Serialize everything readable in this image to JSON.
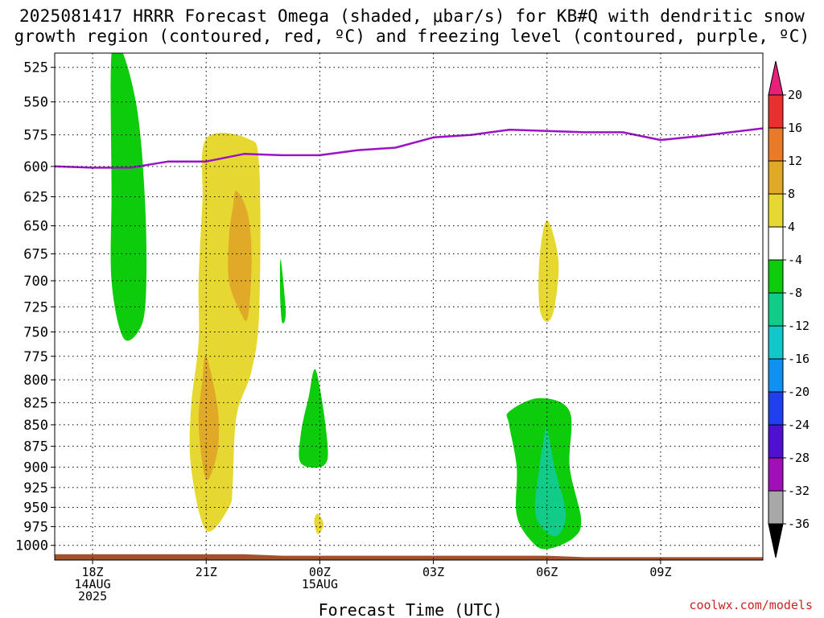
{
  "title_line1": "2025081417 HRRR Forecast Omega (shaded, μbar/s) for KB#Q with dendritic snow",
  "title_line2": "growth region (contoured, red, ºC) and freezing level (contoured, purple, ºC)",
  "credit": "coolwx.com/models",
  "chart_data": {
    "type": "heatmap",
    "title": "2025081417 HRRR Forecast Omega (shaded, μbar/s) for KB#Q with dendritic snow growth region (contoured, red, ºC) and freezing level (contoured, purple, ºC)",
    "xlabel": "Forecast Time (UTC)",
    "ylabel": "",
    "x_unit": "hours since 2025-08-14 17Z",
    "xlim": [
      0,
      18.7
    ],
    "ylim": [
      1020,
      515
    ],
    "y_scale": "log-pressure",
    "grid": true,
    "y_ticks": [
      525,
      550,
      575,
      600,
      625,
      650,
      675,
      700,
      725,
      750,
      775,
      800,
      825,
      850,
      875,
      900,
      925,
      950,
      975,
      1000
    ],
    "x_ticks": [
      {
        "value": 1,
        "lines": [
          "18Z",
          "14AUG",
          "2025"
        ]
      },
      {
        "value": 4,
        "lines": [
          "21Z"
        ]
      },
      {
        "value": 7,
        "lines": [
          "00Z",
          "15AUG"
        ]
      },
      {
        "value": 10,
        "lines": [
          "03Z"
        ]
      },
      {
        "value": 13,
        "lines": [
          "06Z"
        ]
      },
      {
        "value": 16,
        "lines": [
          "09Z"
        ]
      }
    ],
    "colorbar": {
      "levels": [
        20,
        16,
        12,
        8,
        4,
        -4,
        -8,
        -12,
        -16,
        -20,
        -24,
        -28,
        -32,
        -36
      ],
      "colors": [
        "#e8207a",
        "#e83030",
        "#e87a28",
        "#e0aa28",
        "#e6d830",
        "#ffffff",
        "#0ccc0c",
        "#10cc88",
        "#10c8c8",
        "#1090f0",
        "#2040f0",
        "#5010d0",
        "#a010b8",
        "#a8a8a8",
        "#000000"
      ]
    },
    "series": [
      {
        "name": "",
        "kind": "freezing_level_contour",
        "color": "#9b12c8",
        "x": [
          0,
          1,
          2,
          3,
          4,
          5,
          6,
          7,
          8,
          9,
          10,
          11,
          12,
          13,
          14,
          15,
          16,
          17,
          18.7
        ],
        "values": [
          600,
          601,
          601,
          596,
          596,
          590,
          591,
          591,
          587,
          585,
          577,
          575,
          571,
          572,
          573,
          573,
          579,
          576,
          570
        ]
      }
    ],
    "shaded_regions": [
      {
        "band": "-8 to -4",
        "color": "#0ccc0c",
        "x": [
          1.5,
          1.8,
          2.2,
          2.4,
          2.4,
          2.2,
          1.8,
          1.5,
          1.5
        ],
        "p": [
          515,
          515,
          560,
          640,
          720,
          750,
          755,
          700,
          620
        ]
      },
      {
        "band": "4 to 8",
        "color": "#e6d830",
        "x": [
          4.0,
          5.1,
          5.4,
          5.4,
          5.2,
          4.8,
          4.7,
          4.6,
          4.0,
          3.6,
          3.6,
          3.8,
          3.8,
          3.9
        ],
        "p": [
          578,
          578,
          600,
          730,
          790,
          840,
          920,
          950,
          980,
          900,
          830,
          760,
          700,
          630
        ]
      },
      {
        "band": "8 to 12",
        "color": "#e0aa28",
        "x": [
          4.8,
          5.1,
          5.2,
          5.1,
          4.9,
          4.6,
          4.6,
          4.7
        ],
        "p": [
          620,
          640,
          680,
          735,
          730,
          700,
          660,
          635
        ]
      },
      {
        "band": "8 to 12",
        "color": "#e0aa28",
        "x": [
          4.0,
          4.3,
          4.3,
          4.0,
          3.8,
          3.9
        ],
        "p": [
          775,
          830,
          880,
          915,
          850,
          800
        ]
      },
      {
        "band": "-8 to -4",
        "color": "#0ccc0c",
        "x": [
          5.97,
          6.1,
          6.0,
          5.95
        ],
        "p": [
          680,
          730,
          740,
          710
        ]
      },
      {
        "band": "-8 to -4",
        "color": "#0ccc0c",
        "x": [
          6.9,
          7.2,
          7.1,
          6.5,
          6.5,
          6.7
        ],
        "p": [
          790,
          870,
          898,
          895,
          860,
          820
        ]
      },
      {
        "band": "4 to 8",
        "color": "#e6d830",
        "x": [
          6.95,
          7.1,
          6.95,
          6.85
        ],
        "p": [
          958,
          972,
          985,
          968
        ]
      },
      {
        "band": "4 to 8",
        "color": "#e6d830",
        "x": [
          13,
          13.3,
          13.2,
          13.0,
          12.8,
          12.8
        ],
        "p": [
          645,
          680,
          725,
          740,
          725,
          680
        ]
      },
      {
        "band": "-8 to -4",
        "color": "#0ccc0c",
        "x": [
          12.0,
          12.8,
          13.6,
          13.6,
          13.9,
          13.7,
          13.0,
          12.6,
          12.2,
          12.2,
          12.0
        ],
        "p": [
          835,
          820,
          835,
          900,
          965,
          990,
          1005,
          995,
          960,
          900,
          850
        ]
      },
      {
        "band": "-12 to -8",
        "color": "#10cc88",
        "x": [
          13.0,
          13.2,
          13.5,
          13.2,
          12.7,
          12.8,
          12.9
        ],
        "p": [
          855,
          900,
          960,
          988,
          960,
          900,
          870
        ]
      }
    ],
    "terrain": {
      "color": "#a0522d",
      "x": [
        0,
        4,
        5,
        6,
        9,
        13,
        14,
        18.7
      ],
      "p_top": [
        1012,
        1012,
        1012,
        1014,
        1014,
        1014,
        1016,
        1016
      ]
    }
  }
}
